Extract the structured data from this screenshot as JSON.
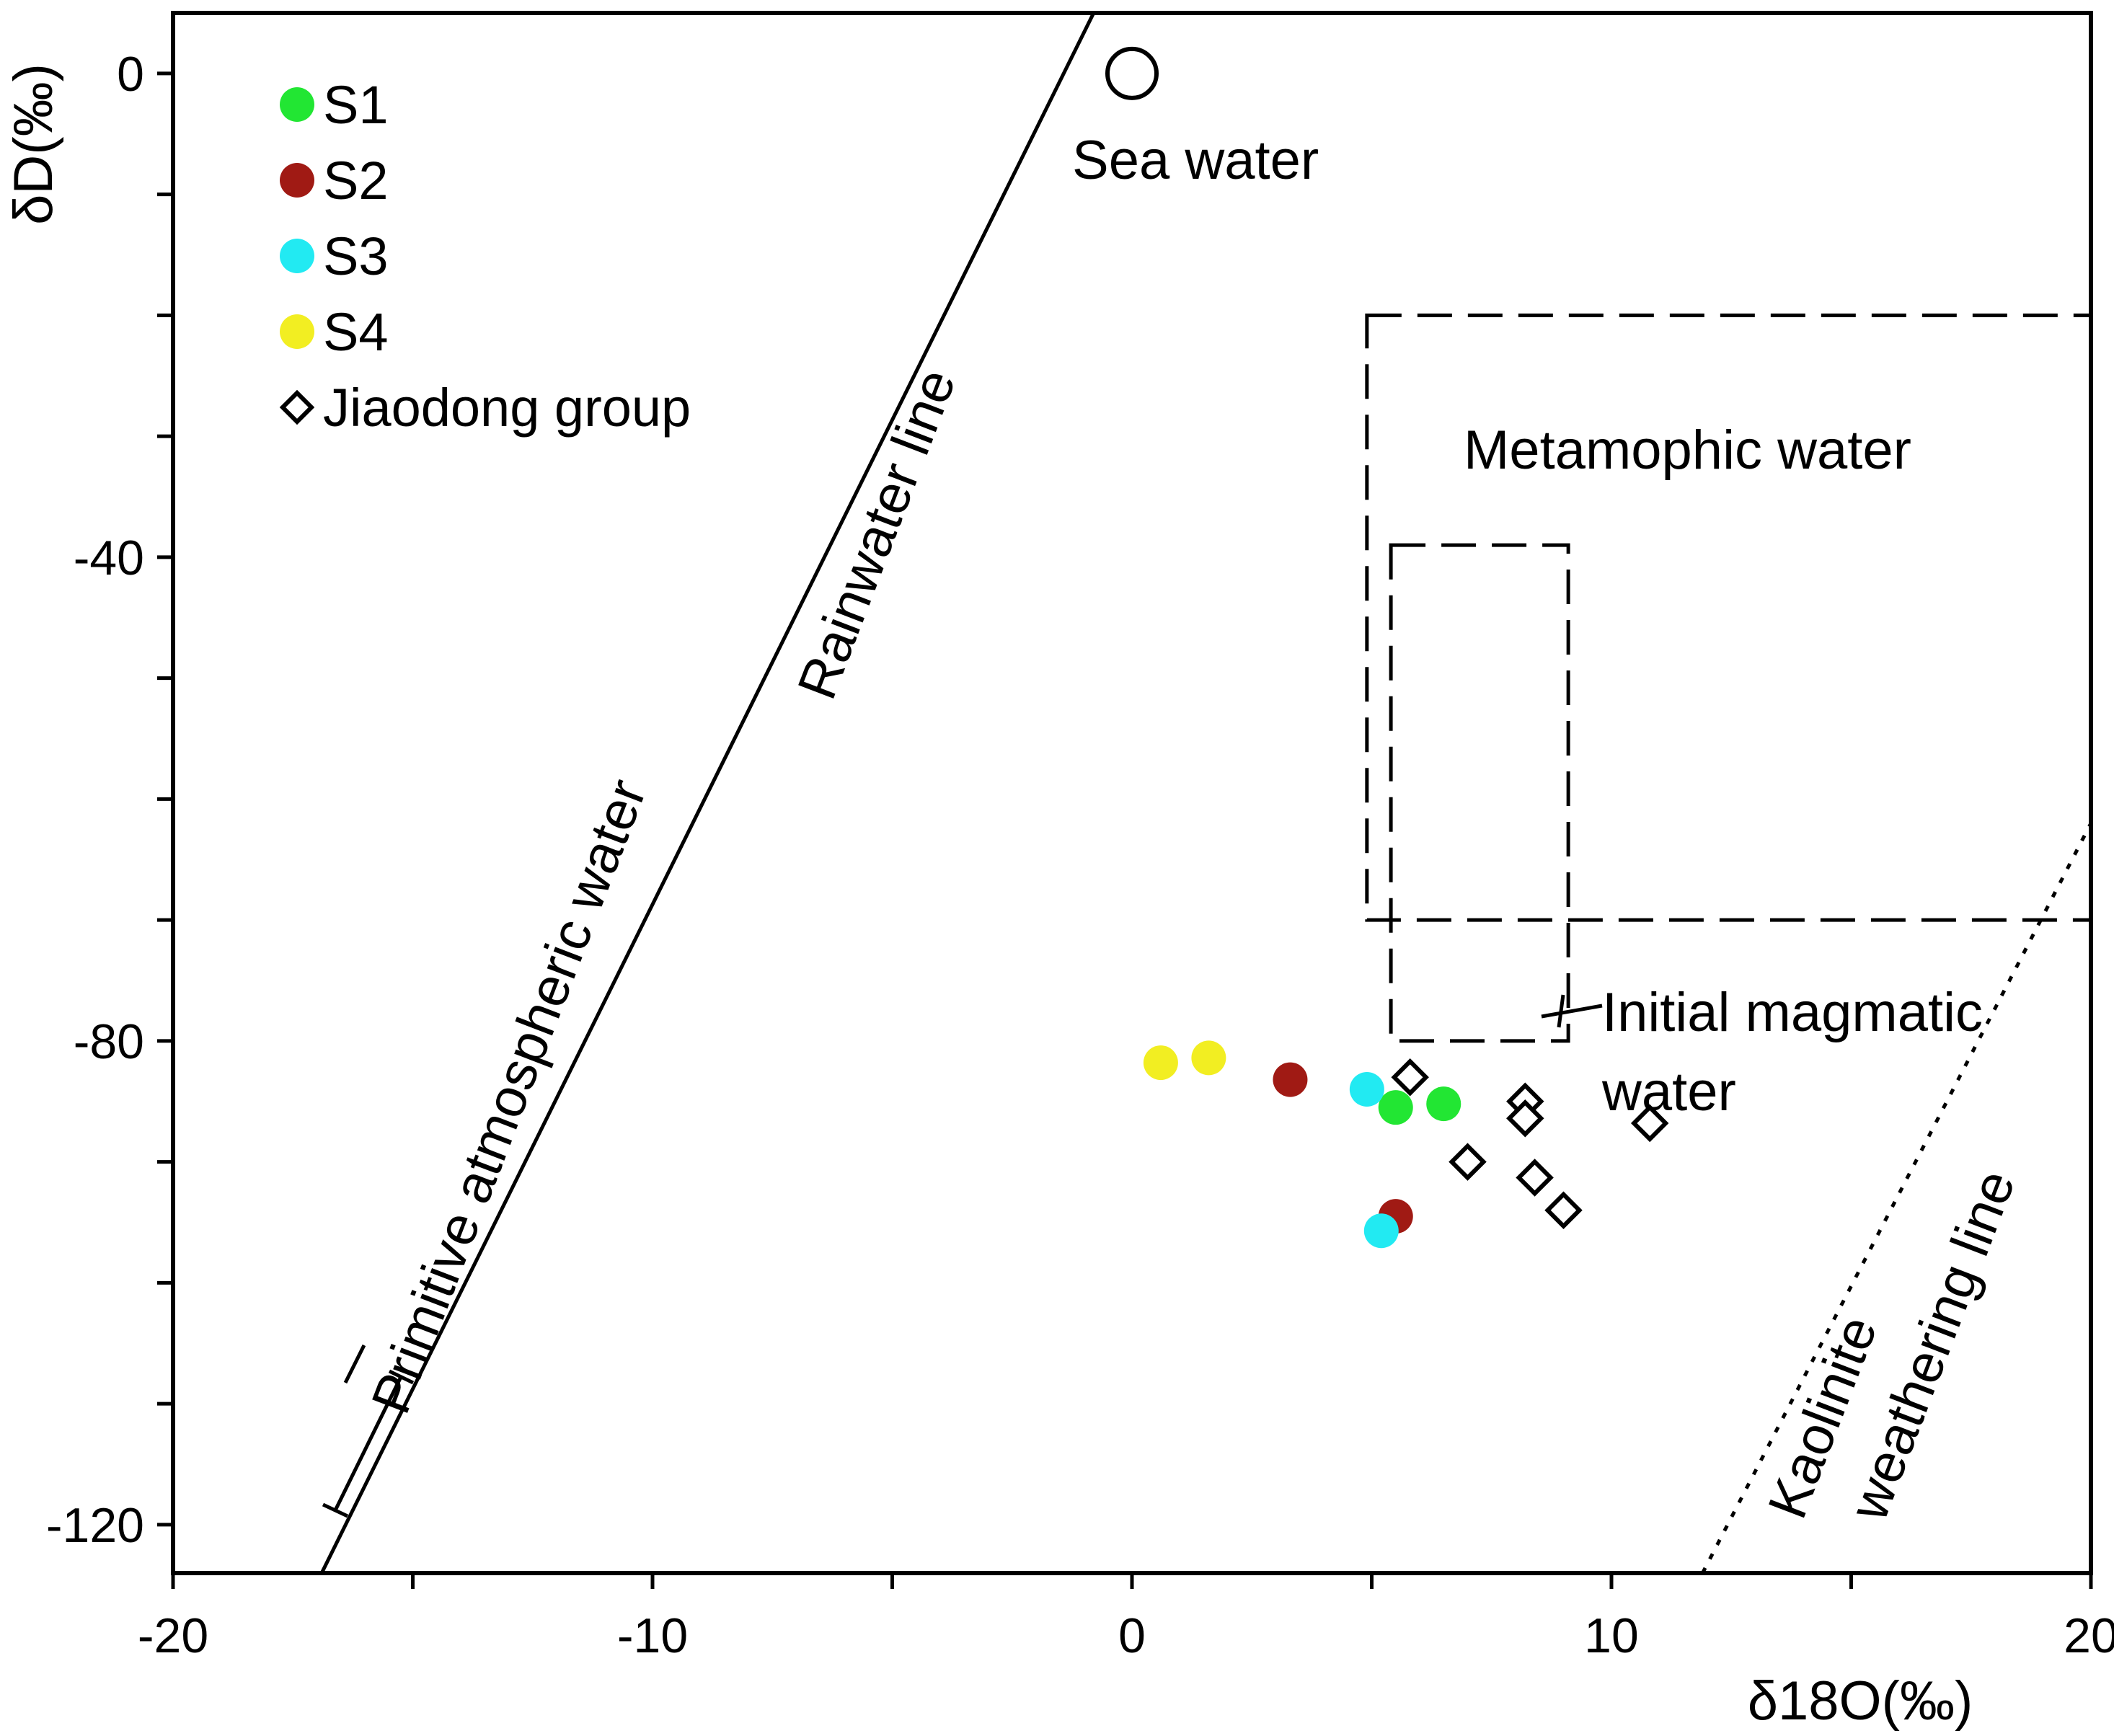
{
  "chart_data": {
    "type": "scatter",
    "xlabel": "δ18O(‰)",
    "ylabel": "δD(‰)",
    "xlim": [
      -20,
      20
    ],
    "ylim": [
      -124,
      5
    ],
    "xticks": [
      -20,
      -10,
      0,
      10,
      20
    ],
    "xtick_labels": [
      "-20",
      "-10",
      "0",
      "10",
      "20"
    ],
    "yticks": [
      0,
      -40,
      -80,
      -120
    ],
    "ytick_labels": [
      "0",
      "-40",
      "-80",
      "-120"
    ],
    "legend_position": "top-left",
    "series": [
      {
        "name": "S1",
        "color": "#22e633",
        "marker": "circle",
        "points": [
          [
            5.5,
            -85.5
          ],
          [
            6.5,
            -85.2
          ]
        ]
      },
      {
        "name": "S2",
        "color": "#a01a14",
        "marker": "circle",
        "points": [
          [
            3.3,
            -83.2
          ],
          [
            5.5,
            -94.5
          ]
        ]
      },
      {
        "name": "S3",
        "color": "#22eaf2",
        "marker": "circle",
        "points": [
          [
            4.9,
            -84.0
          ],
          [
            5.2,
            -95.7
          ]
        ]
      },
      {
        "name": "S4",
        "color": "#f2ee22",
        "marker": "circle",
        "points": [
          [
            0.6,
            -81.8
          ],
          [
            1.6,
            -81.4
          ]
        ]
      },
      {
        "name": "Jiaodong group",
        "color": "#000000",
        "marker": "diamond-open",
        "points": [
          [
            5.8,
            -83.0
          ],
          [
            7.0,
            -90.0
          ],
          [
            8.2,
            -85.0
          ],
          [
            8.2,
            -86.4
          ],
          [
            8.4,
            -91.3
          ],
          [
            9.0,
            -94.0
          ],
          [
            10.8,
            -86.8
          ]
        ]
      }
    ],
    "annotations": {
      "sea_water": {
        "label": "Sea water",
        "point": [
          0.0,
          0.0
        ]
      },
      "rainwater_line": {
        "label": "Rainwater line",
        "from": [
          -16.9,
          -124
        ],
        "to": [
          -0.8,
          5
        ]
      },
      "primitive_water": {
        "label": "Primitive atmospheric water"
      },
      "metamorphic_water": {
        "label": "Metamophic water",
        "x_range": [
          4.9,
          20
        ],
        "y_range": [
          -70,
          -20
        ]
      },
      "initial_magmatic": {
        "label_line1": "Initial magmatic",
        "label_line2": "water",
        "x_range": [
          5.4,
          9.1
        ],
        "y_range": [
          -80,
          -39
        ]
      },
      "kaolinite_line": {
        "label_line1": "Kaolinite",
        "label_line2": "weathering line",
        "from": [
          11.9,
          -124
        ],
        "to": [
          20,
          -62
        ]
      }
    }
  }
}
